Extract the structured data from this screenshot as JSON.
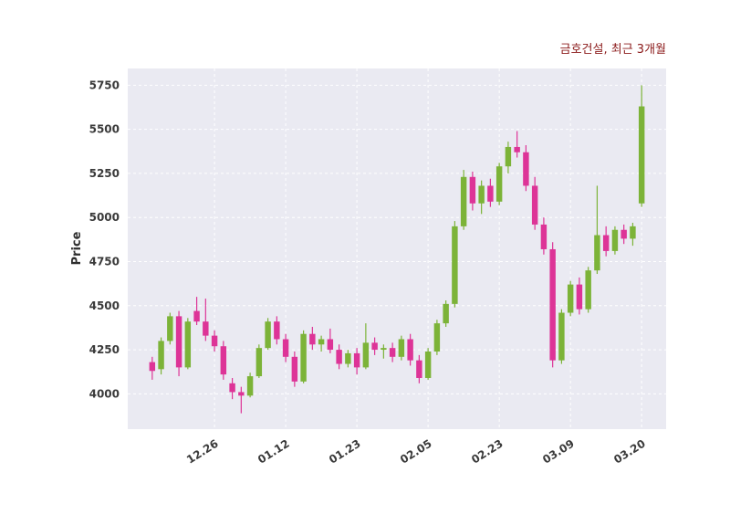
{
  "chart_data": {
    "type": "candlestick",
    "title": "금호건설, 최근 3개월",
    "ylabel": "Price",
    "yticks": [
      4000,
      4250,
      4500,
      4750,
      5000,
      5250,
      5500,
      5750
    ],
    "ylim": [
      3800,
      5845
    ],
    "xlim": [
      -2.75,
      57.75
    ],
    "grid": true,
    "legend": "none",
    "plot_bg_color": "#eaeaf2",
    "grid_color": "#ffffff",
    "up_color": "#7cb338",
    "down_color": "#dd3497",
    "title_color": "#8b1a1a",
    "tick_color": "#3a3a3a",
    "xticks": [
      {
        "index": 7,
        "label": "12.26"
      },
      {
        "index": 15,
        "label": "01.12"
      },
      {
        "index": 23,
        "label": "01.23"
      },
      {
        "index": 31,
        "label": "02.05"
      },
      {
        "index": 39,
        "label": "02.23"
      },
      {
        "index": 47,
        "label": "03.09"
      },
      {
        "index": 55,
        "label": "03.20"
      }
    ],
    "candles": [
      [
        4180,
        4210,
        4080,
        4130
      ],
      [
        4140,
        4320,
        4110,
        4300
      ],
      [
        4300,
        4460,
        4280,
        4440
      ],
      [
        4440,
        4470,
        4100,
        4150
      ],
      [
        4150,
        4430,
        4140,
        4410
      ],
      [
        4470,
        4550,
        4390,
        4410
      ],
      [
        4410,
        4540,
        4300,
        4330
      ],
      [
        4330,
        4360,
        4240,
        4270
      ],
      [
        4270,
        4300,
        4080,
        4110
      ],
      [
        4060,
        4090,
        3970,
        4010
      ],
      [
        4010,
        4040,
        3890,
        3990
      ],
      [
        3990,
        4120,
        3980,
        4100
      ],
      [
        4100,
        4280,
        4090,
        4260
      ],
      [
        4260,
        4430,
        4250,
        4410
      ],
      [
        4410,
        4440,
        4280,
        4310
      ],
      [
        4310,
        4340,
        4180,
        4210
      ],
      [
        4210,
        4240,
        4040,
        4070
      ],
      [
        4070,
        4360,
        4060,
        4340
      ],
      [
        4340,
        4380,
        4250,
        4280
      ],
      [
        4280,
        4330,
        4240,
        4310
      ],
      [
        4310,
        4370,
        4230,
        4250
      ],
      [
        4250,
        4280,
        4140,
        4170
      ],
      [
        4170,
        4250,
        4150,
        4230
      ],
      [
        4230,
        4260,
        4110,
        4150
      ],
      [
        4150,
        4400,
        4140,
        4290
      ],
      [
        4290,
        4320,
        4220,
        4250
      ],
      [
        4250,
        4280,
        4200,
        4260
      ],
      [
        4260,
        4290,
        4180,
        4210
      ],
      [
        4210,
        4330,
        4190,
        4310
      ],
      [
        4310,
        4340,
        4160,
        4190
      ],
      [
        4190,
        4220,
        4060,
        4090
      ],
      [
        4090,
        4260,
        4080,
        4240
      ],
      [
        4240,
        4420,
        4220,
        4400
      ],
      [
        4400,
        4530,
        4380,
        4510
      ],
      [
        4510,
        4980,
        4490,
        4950
      ],
      [
        4950,
        5270,
        4930,
        5230
      ],
      [
        5230,
        5260,
        5040,
        5080
      ],
      [
        5080,
        5210,
        5020,
        5180
      ],
      [
        5180,
        5220,
        5060,
        5090
      ],
      [
        5090,
        5310,
        5070,
        5290
      ],
      [
        5290,
        5430,
        5250,
        5400
      ],
      [
        5400,
        5490,
        5340,
        5370
      ],
      [
        5370,
        5410,
        5150,
        5180
      ],
      [
        5180,
        5230,
        4930,
        4960
      ],
      [
        4960,
        5000,
        4790,
        4820
      ],
      [
        4820,
        4860,
        4150,
        4190
      ],
      [
        4190,
        4480,
        4170,
        4460
      ],
      [
        4460,
        4640,
        4440,
        4620
      ],
      [
        4620,
        4660,
        4450,
        4480
      ],
      [
        4480,
        4720,
        4460,
        4700
      ],
      [
        4700,
        5180,
        4680,
        4900
      ],
      [
        4900,
        4950,
        4780,
        4810
      ],
      [
        4810,
        4950,
        4790,
        4930
      ],
      [
        4930,
        4960,
        4850,
        4880
      ],
      [
        4880,
        4970,
        4840,
        4950
      ],
      [
        5080,
        5750,
        5060,
        5630
      ]
    ]
  }
}
